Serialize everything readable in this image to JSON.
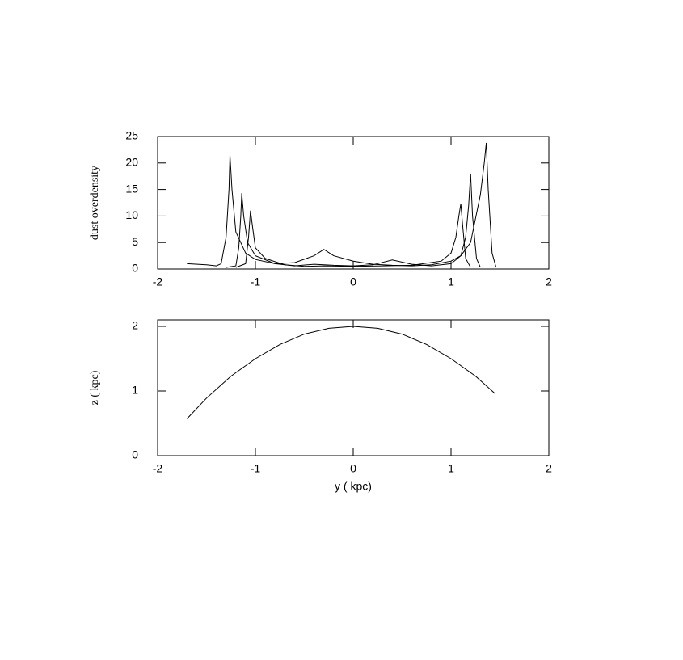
{
  "chart_data": [
    {
      "type": "line",
      "ylabel": "dust overdensity",
      "xlim": [
        -2,
        2
      ],
      "xticks": [
        -2,
        -1,
        0,
        1,
        2
      ],
      "ylim": [
        0,
        25
      ],
      "yticks": [
        0,
        5,
        10,
        15,
        20,
        25
      ],
      "series": [
        {
          "color": "#000000",
          "x": [
            -1.7,
            -1.5,
            -1.4,
            -1.35,
            -1.3,
            -1.27,
            -1.26,
            -1.24,
            -1.2,
            -1.1,
            -1.0,
            -0.8,
            -0.6,
            -0.4,
            -0.3,
            -0.2,
            0,
            0.2,
            0.4,
            0.6,
            0.8,
            1.0,
            1.1,
            1.2,
            1.3,
            1.34,
            1.36,
            1.38,
            1.42,
            1.46
          ],
          "values": [
            1,
            0.8,
            0.6,
            1,
            6,
            15,
            21.5,
            15,
            7,
            3,
            1.8,
            1,
            1.2,
            2.5,
            3.7,
            2.5,
            1.5,
            0.9,
            0.7,
            0.6,
            0.8,
            1.5,
            2.5,
            5,
            14,
            20,
            23.8,
            15,
            3,
            0.3
          ]
        },
        {
          "color": "#000000",
          "x": [
            -1.3,
            -1.2,
            -1.17,
            -1.15,
            -1.14,
            -1.12,
            -1.08,
            -1.0,
            -0.8,
            -0.6,
            -0.4,
            -0.2,
            0,
            0.2,
            0.4,
            0.6,
            0.8,
            1.0,
            1.1,
            1.15,
            1.18,
            1.2,
            1.22,
            1.26,
            1.3
          ],
          "values": [
            0.3,
            0.6,
            4,
            10,
            14.3,
            10,
            5,
            2.5,
            1,
            0.6,
            0.9,
            0.7,
            0.6,
            0.8,
            1.7,
            0.9,
            0.6,
            1,
            2.5,
            6,
            12,
            18,
            10,
            2,
            0.3
          ]
        },
        {
          "color": "#000000",
          "x": [
            -1.2,
            -1.1,
            -1.07,
            -1.05,
            -1.03,
            -1.0,
            -0.9,
            -0.7,
            -0.5,
            -0.3,
            0,
            0.3,
            0.6,
            0.9,
            1.0,
            1.05,
            1.08,
            1.1,
            1.12,
            1.15,
            1.2
          ],
          "values": [
            0.3,
            1,
            6,
            11,
            8,
            4,
            2,
            0.8,
            0.5,
            0.6,
            0.5,
            0.6,
            0.7,
            1.5,
            3,
            6,
            10,
            12.3,
            8,
            2,
            0.3
          ]
        }
      ]
    },
    {
      "type": "line",
      "xlabel": "y ( kpc)",
      "ylabel": "z ( kpc)",
      "xlim": [
        -2,
        2
      ],
      "xticks": [
        -2,
        -1,
        0,
        1,
        2
      ],
      "ylim": [
        0,
        2.1
      ],
      "yticks": [
        0,
        1,
        2
      ],
      "series": [
        {
          "color": "#000000",
          "x": [
            -1.7,
            -1.5,
            -1.25,
            -1.0,
            -0.75,
            -0.5,
            -0.25,
            0,
            0.25,
            0.5,
            0.75,
            1.0,
            1.25,
            1.45
          ],
          "values": [
            0.57,
            0.89,
            1.23,
            1.5,
            1.72,
            1.88,
            1.97,
            2,
            1.97,
            1.88,
            1.72,
            1.5,
            1.23,
            0.96
          ]
        }
      ]
    }
  ]
}
